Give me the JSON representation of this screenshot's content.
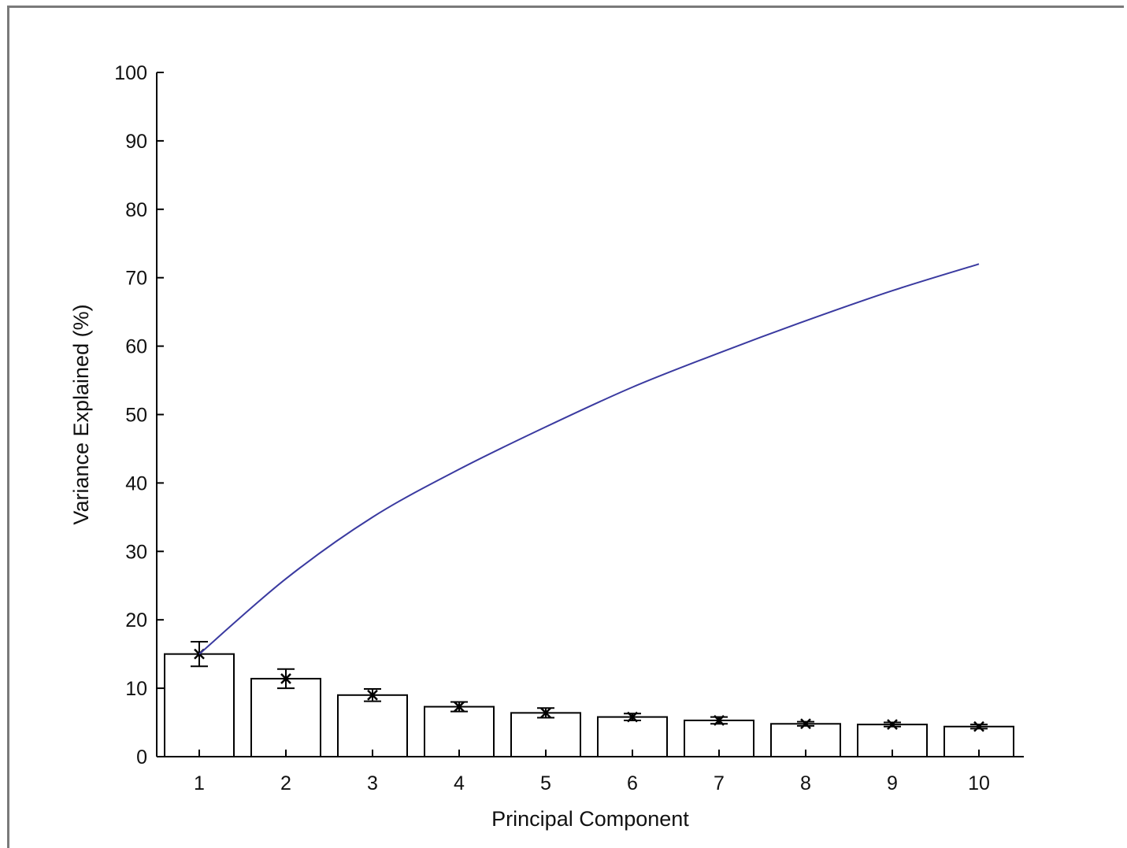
{
  "chart_data": {
    "type": "bar",
    "categories": [
      "1",
      "2",
      "3",
      "4",
      "5",
      "6",
      "7",
      "8",
      "9",
      "10"
    ],
    "series": [
      {
        "type": "bar",
        "values": [
          15.0,
          11.4,
          9.0,
          7.3,
          6.4,
          5.8,
          5.3,
          4.8,
          4.7,
          4.4
        ],
        "error": [
          1.8,
          1.4,
          0.9,
          0.7,
          0.7,
          0.5,
          0.5,
          0.3,
          0.3,
          0.3
        ]
      },
      {
        "type": "line",
        "values": [
          15.0,
          26.0,
          35.0,
          42.0,
          48.2,
          54.0,
          59.0,
          63.7,
          68.1,
          72.0
        ],
        "color": "#3a3aa0"
      }
    ],
    "xlabel": "Principal Component",
    "ylabel": "Variance Explained (%)",
    "ylim": [
      0,
      100
    ],
    "yticks": [
      "0",
      "10",
      "20",
      "30",
      "40",
      "50",
      "60",
      "70",
      "80",
      "90",
      "100"
    ],
    "grid": false,
    "legend": "none",
    "bar_fill": "#ffffff",
    "bar_edge": "#000000",
    "line_color": "#3a3aa0"
  }
}
